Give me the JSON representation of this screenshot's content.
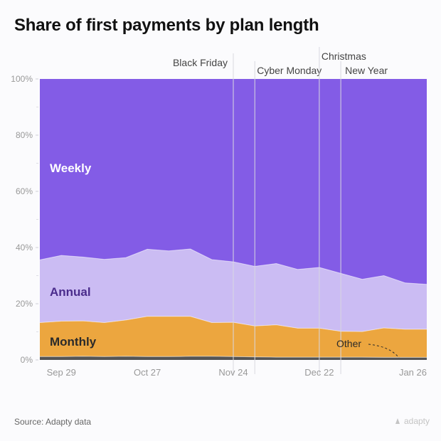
{
  "title": "Share of first payments by plan length",
  "source": "Source: Adapty data",
  "brand": "adapty",
  "colors": {
    "weekly": "#835ce6",
    "annual": "#cbbcf3",
    "monthly": "#eca63f",
    "other": "#555555",
    "axis_text": "#999999",
    "event_line": "#d8d8e0",
    "event_text": "#444444"
  },
  "chart_data": {
    "type": "area",
    "stacked": true,
    "normalized": true,
    "x": [
      "Sep 22",
      "Sep 29",
      "Oct 6",
      "Oct 13",
      "Oct 20",
      "Oct 27",
      "Nov 3",
      "Nov 10",
      "Nov 17",
      "Nov 24",
      "Dec 1",
      "Dec 8",
      "Dec 15",
      "Dec 22",
      "Dec 29",
      "Jan 5",
      "Jan 12",
      "Jan 19",
      "Jan 26"
    ],
    "x_ticks": [
      "Sep 29",
      "Oct 27",
      "Nov 24",
      "Dec 22",
      "Jan 26"
    ],
    "y_ticks": [
      "0%",
      "20%",
      "40%",
      "60%",
      "80%",
      "100%"
    ],
    "ylim": [
      0,
      100
    ],
    "series": [
      {
        "name": "Other",
        "values": [
          1.2,
          1.2,
          1.3,
          1.2,
          1.3,
          1.2,
          1.2,
          1.3,
          1.3,
          1.2,
          1.1,
          1.0,
          1.0,
          1.0,
          1.0,
          1.0,
          0.9,
          0.9,
          0.9
        ]
      },
      {
        "name": "Monthly",
        "values": [
          12.1,
          12.6,
          12.6,
          12.1,
          12.9,
          14.3,
          14.3,
          14.2,
          12.0,
          12.2,
          11.0,
          11.5,
          10.3,
          10.3,
          9.2,
          9.1,
          10.5,
          10.0,
          10.0
        ]
      },
      {
        "name": "Annual",
        "values": [
          22.3,
          23.4,
          22.7,
          22.5,
          22.2,
          23.9,
          23.3,
          24.0,
          22.4,
          21.5,
          21.2,
          21.8,
          20.9,
          21.6,
          20.6,
          18.6,
          18.6,
          16.5,
          16.0
        ]
      },
      {
        "name": "Weekly",
        "values": [
          64.4,
          62.8,
          63.4,
          64.2,
          63.6,
          60.6,
          61.2,
          60.5,
          64.3,
          65.1,
          66.7,
          65.7,
          67.8,
          67.1,
          69.2,
          71.3,
          70.0,
          72.6,
          73.1
        ]
      }
    ],
    "series_labels": [
      "Weekly",
      "Annual",
      "Monthly",
      "Other"
    ],
    "events": [
      {
        "label": "Black Friday",
        "x": "Nov 24"
      },
      {
        "label": "Cyber Monday",
        "x": "Dec 1"
      },
      {
        "label": "Christmas",
        "x": "Dec 22"
      },
      {
        "label": "New Year",
        "x": "Dec 29"
      }
    ]
  }
}
